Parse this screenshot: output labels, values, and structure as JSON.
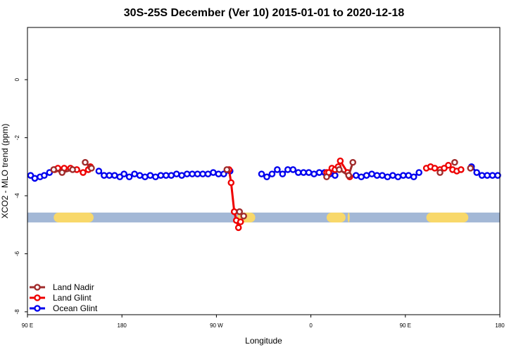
{
  "chart_data": {
    "type": "line",
    "title": "30S-25S December (Ver 10)   2015-01-01 to 2020-12-18",
    "xlabel": "Longitude",
    "ylabel": "XCO2 - MLO trend (ppm)",
    "x_ticks": [
      {
        "value": 90,
        "label": "90 E"
      },
      {
        "value": 180,
        "label": "180"
      },
      {
        "value": 270,
        "label": "90 W"
      },
      {
        "value": 360,
        "label": "0"
      },
      {
        "value": 450,
        "label": "90 E"
      },
      {
        "value": 540,
        "label": "180"
      }
    ],
    "y_ticks": [
      {
        "value": 0,
        "label": "0"
      },
      {
        "value": -2,
        "label": "-2"
      },
      {
        "value": -4,
        "label": "-4"
      },
      {
        "value": -6,
        "label": "-6"
      },
      {
        "value": -8,
        "label": "-8"
      }
    ],
    "xlim": [
      90,
      540
    ],
    "ylim": [
      -8.1,
      1.8
    ],
    "grid": false,
    "legend_position": "bottom-left",
    "surface_band": {
      "y": -4.75,
      "ocean_color": "#a3b8d6",
      "land_color": "#f8d86a",
      "land_ranges": [
        [
          115,
          153
        ],
        [
          290,
          307
        ],
        [
          375,
          393
        ],
        [
          395,
          397
        ],
        [
          470,
          510
        ]
      ]
    },
    "series": [
      {
        "name": "Land Nadir",
        "color": "#a02c2c",
        "x": [
          115,
          123,
          133,
          145,
          151,
          280,
          292,
          296,
          375,
          387,
          396,
          400,
          483,
          497,
          512
        ],
        "y": [
          -3.1,
          -3.2,
          -3.1,
          -2.85,
          -3.05,
          -3.1,
          -4.55,
          -4.7,
          -3.35,
          -3.1,
          -3.3,
          -2.85,
          -3.2,
          -2.85,
          -3.05
        ]
      },
      {
        "name": "Land Glint",
        "color": "#ee0000",
        "x": [
          116,
          119,
          125,
          131,
          137,
          143,
          148,
          150,
          282,
          284,
          287,
          289,
          291,
          293,
          375,
          377,
          380,
          383,
          386,
          388,
          395,
          397,
          470,
          474,
          478,
          483,
          487,
          491,
          495,
          499,
          503
        ],
        "y": [
          -3.1,
          -3.05,
          -3.05,
          -3.05,
          -3.1,
          -3.2,
          -3.1,
          -3.0,
          -3.1,
          -3.55,
          -4.55,
          -4.85,
          -5.1,
          -4.9,
          -3.2,
          -3.2,
          -3.05,
          -3.1,
          -3.0,
          -2.8,
          -3.2,
          -3.35,
          -3.05,
          -3.0,
          -3.05,
          -3.1,
          -3.05,
          -2.95,
          -3.1,
          -3.15,
          -3.1
        ]
      },
      {
        "name": "Ocean Glint",
        "color": "#0000ee",
        "x": [
          93,
          97,
          102,
          106,
          111,
          158,
          163,
          168,
          173,
          178,
          182,
          187,
          192,
          197,
          202,
          207,
          212,
          217,
          222,
          227,
          232,
          237,
          242,
          247,
          252,
          257,
          262,
          267,
          272,
          277,
          283,
          313,
          318,
          323,
          328,
          333,
          338,
          343,
          348,
          353,
          358,
          363,
          368,
          373,
          378,
          383,
          403,
          408,
          413,
          418,
          423,
          428,
          433,
          438,
          443,
          448,
          453,
          458,
          463,
          513,
          518,
          523,
          528,
          533,
          538
        ],
        "y": [
          -3.3,
          -3.4,
          -3.35,
          -3.3,
          -3.2,
          -3.15,
          -3.3,
          -3.3,
          -3.3,
          -3.35,
          -3.25,
          -3.35,
          -3.25,
          -3.3,
          -3.35,
          -3.3,
          -3.35,
          -3.3,
          -3.3,
          -3.3,
          -3.25,
          -3.3,
          -3.25,
          -3.25,
          -3.25,
          -3.25,
          -3.25,
          -3.2,
          -3.25,
          -3.25,
          -3.15,
          -3.25,
          -3.35,
          -3.25,
          -3.1,
          -3.25,
          -3.1,
          -3.1,
          -3.2,
          -3.2,
          -3.2,
          -3.25,
          -3.2,
          -3.2,
          -3.25,
          -3.3,
          -3.3,
          -3.35,
          -3.3,
          -3.25,
          -3.3,
          -3.3,
          -3.35,
          -3.3,
          -3.35,
          -3.3,
          -3.3,
          -3.35,
          -3.2,
          -3.0,
          -3.2,
          -3.3,
          -3.3,
          -3.3,
          -3.3
        ]
      }
    ]
  }
}
